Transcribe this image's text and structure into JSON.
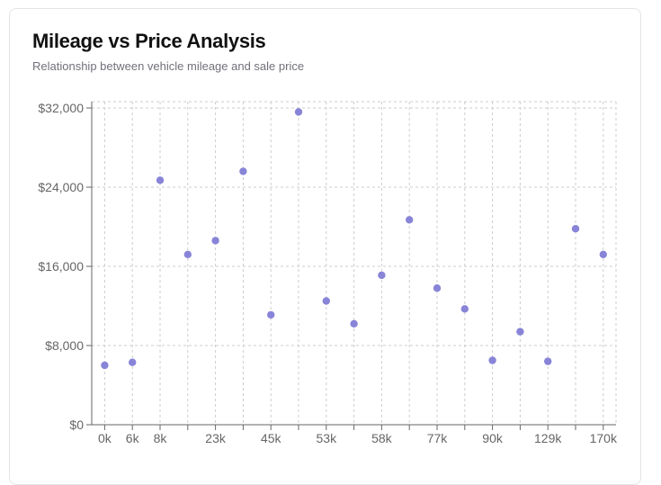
{
  "header": {
    "title": "Mileage vs Price Analysis",
    "subtitle": "Relationship between vehicle mileage and sale price"
  },
  "colors": {
    "point": "#8884d8",
    "grid": "#cccccc",
    "axis": "#666666"
  },
  "chart_data": {
    "type": "scatter",
    "title": "Mileage vs Price Analysis",
    "subtitle": "Relationship between vehicle mileage and sale price",
    "xlabel": "",
    "ylabel": "",
    "x_ticks": [
      "0k",
      "6k",
      "8k",
      "23k",
      "45k",
      "53k",
      "58k",
      "77k",
      "90k",
      "129k",
      "170k"
    ],
    "y_ticks": [
      "$0",
      "$8,000",
      "$16,000",
      "$24,000",
      "$32,000"
    ],
    "ylim": [
      0,
      32000
    ],
    "grid": true,
    "legend": "none",
    "points": [
      {
        "x": "0k",
        "y": 6000
      },
      {
        "x": "6k",
        "y": 6300
      },
      {
        "x": "8k",
        "y": 24700
      },
      {
        "x": "15k",
        "y": 17200
      },
      {
        "x": "23k",
        "y": 18600
      },
      {
        "x": "34k",
        "y": 25600
      },
      {
        "x": "45k",
        "y": 11100
      },
      {
        "x": "49k",
        "y": 31600
      },
      {
        "x": "53k",
        "y": 12500
      },
      {
        "x": "55k",
        "y": 10200
      },
      {
        "x": "58k",
        "y": 15100
      },
      {
        "x": "67k",
        "y": 20700
      },
      {
        "x": "77k",
        "y": 13800
      },
      {
        "x": "83k",
        "y": 11700
      },
      {
        "x": "90k",
        "y": 6500
      },
      {
        "x": "102k",
        "y": 9400
      },
      {
        "x": "129k",
        "y": 6400
      },
      {
        "x": "150k",
        "y": 19800
      },
      {
        "x": "170k",
        "y": 17200
      }
    ]
  }
}
